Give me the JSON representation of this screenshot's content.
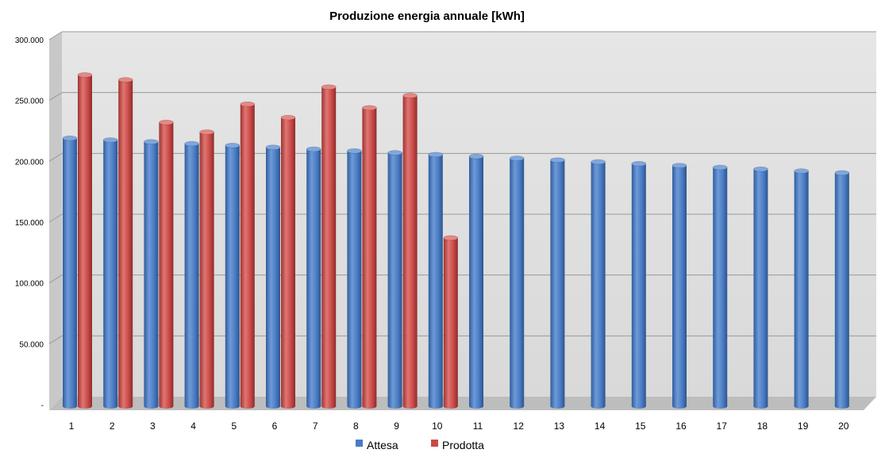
{
  "chart_data": {
    "type": "bar",
    "title": "Produzione energia annuale [kWh]",
    "xlabel": "",
    "ylabel": "",
    "ylim": [
      0,
      300000
    ],
    "yticks": [
      0,
      50000,
      100000,
      150000,
      200000,
      250000,
      300000
    ],
    "ytick_labels": [
      "-",
      "50.000",
      "100.000",
      "150.000",
      "200.000",
      "250.000",
      "300.000"
    ],
    "categories": [
      "1",
      "2",
      "3",
      "4",
      "5",
      "6",
      "7",
      "8",
      "9",
      "10",
      "11",
      "12",
      "13",
      "14",
      "15",
      "16",
      "17",
      "18",
      "19",
      "20"
    ],
    "grid": true,
    "legend": "bottom",
    "series": [
      {
        "name": "Attesa",
        "color": "#4a7cc4",
        "values": [
          219000,
          217500,
          216000,
          214500,
          213000,
          211500,
          210000,
          208500,
          207000,
          205500,
          204000,
          202500,
          201000,
          199500,
          198000,
          196500,
          195000,
          193500,
          192000,
          190500
        ]
      },
      {
        "name": "Prodotta",
        "color": "#c94a48",
        "values": [
          271000,
          267000,
          232000,
          224000,
          247000,
          236000,
          261000,
          244000,
          254000,
          137000,
          null,
          null,
          null,
          null,
          null,
          null,
          null,
          null,
          null,
          null
        ]
      }
    ]
  }
}
